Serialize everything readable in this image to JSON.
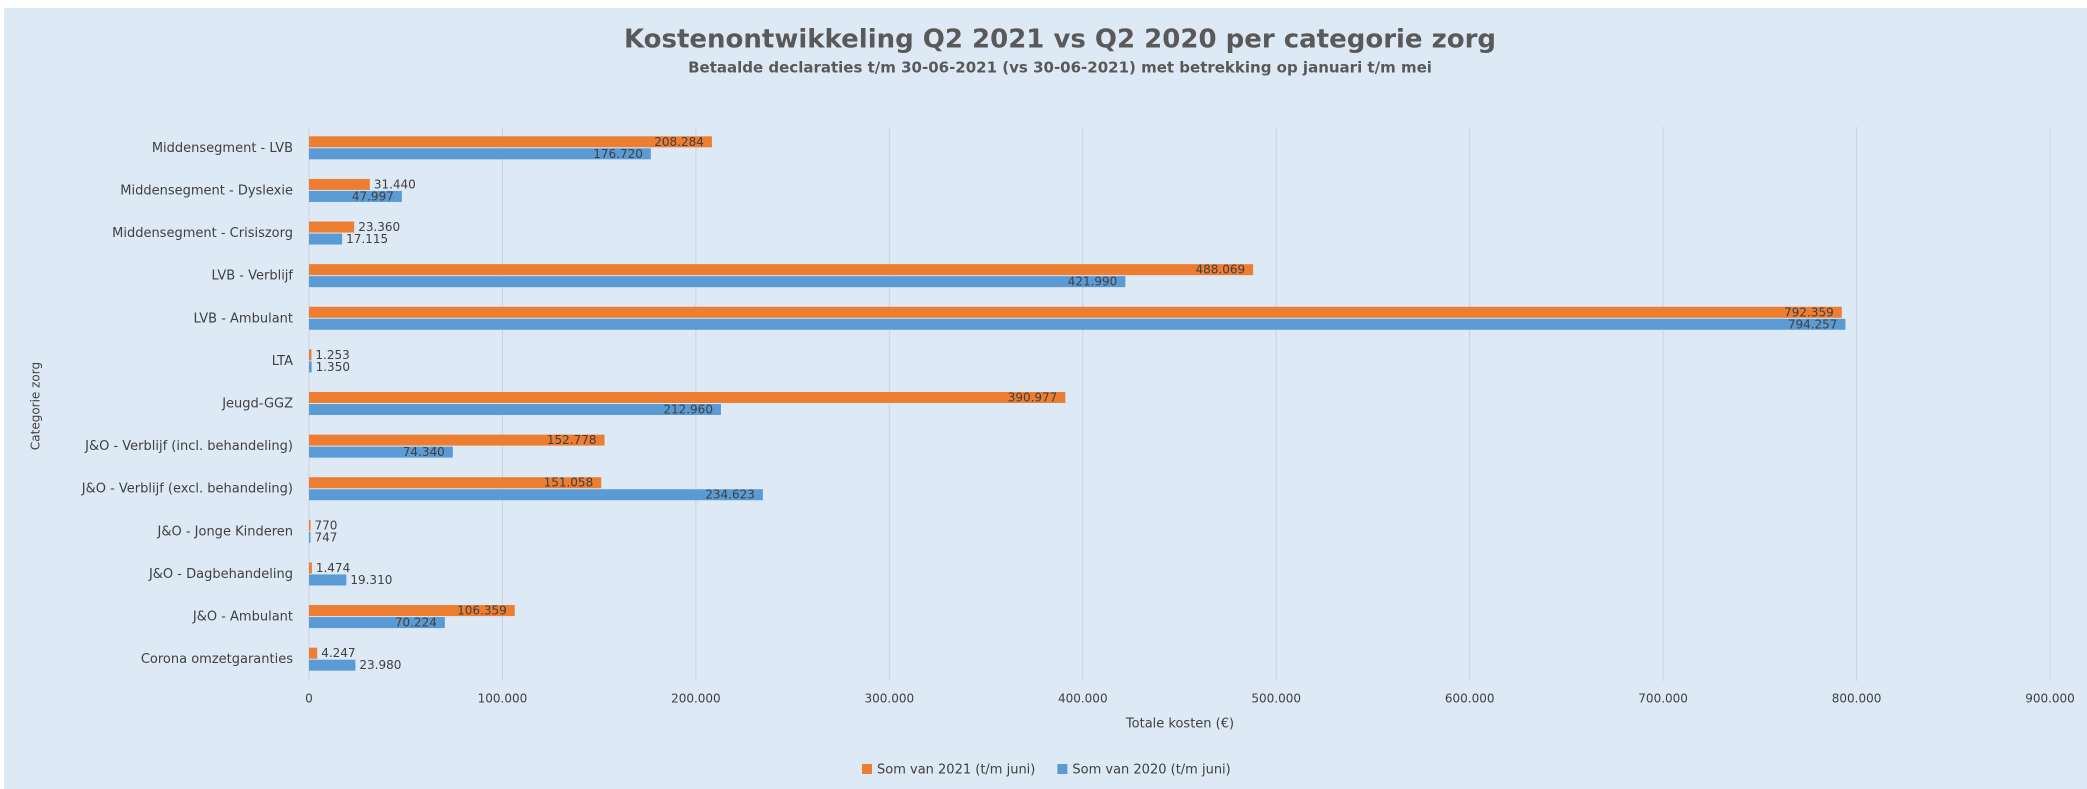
{
  "chart_data": {
    "type": "hbar",
    "title": "Kostenontwikkeling Q2 2021 vs Q2 2020 per categorie zorg",
    "subtitle": "Betaalde declaraties t/m 30-06-2021 (vs 30-06-2021) met betrekking op januari t/m  mei",
    "x_label": "Totale kosten (€)",
    "y_label": "Categorie zorg",
    "categories": [
      "Middensegment - LVB",
      "Middensegment - Dyslexie",
      "Middensegment - Crisiszorg",
      "LVB - Verblijf",
      "LVB - Ambulant",
      "LTA",
      "Jeugd-GGZ",
      "J&O - Verblijf (incl. behandeling)",
      "J&O - Verblijf (excl. behandeling)",
      "J&O - Jonge Kinderen",
      "J&O - Dagbehandeling",
      "J&O - Ambulant",
      "Corona omzetgaranties"
    ],
    "series": [
      {
        "name": "Som van 2021 (t/m juni)",
        "color": "#ed7d31",
        "values": [
          208284,
          31440,
          23360,
          488069,
          792359,
          1253,
          390977,
          152778,
          151058,
          770,
          1474,
          106359,
          4247
        ],
        "value_labels": [
          "208.284",
          "31.440",
          "23.360",
          "488.069",
          "792.359",
          "1.253",
          "390.977",
          "152.778",
          "151.058",
          "770",
          "1.474",
          "106.359",
          "4.247"
        ]
      },
      {
        "name": "Som van 2020 (t/m juni)",
        "color": "#5b9bd5",
        "values": [
          176720,
          47997,
          17115,
          421990,
          794257,
          1350,
          212960,
          74340,
          234623,
          747,
          19310,
          70224,
          23980
        ],
        "value_labels": [
          "176.720",
          "47.997",
          "17.115",
          "421.990",
          "794.257",
          "1.350",
          "212.960",
          "74.340",
          "234.623",
          "747",
          "19.310",
          "70.224",
          "23.980"
        ]
      }
    ],
    "xlim": [
      0,
      900000
    ],
    "xticks": [
      0,
      {
        "value": 100000,
        "label": "100.000"
      },
      {
        "value": 200000,
        "label": "200.000"
      },
      {
        "value": 300000,
        "label": "300.000"
      },
      {
        "value": 400000,
        "label": "400.000"
      },
      {
        "value": 500000,
        "label": "500.000"
      },
      {
        "value": 600000,
        "label": "600.000"
      },
      {
        "value": 700000,
        "label": "700.000"
      },
      {
        "value": 800000,
        "label": "800.000"
      },
      {
        "value": 900000,
        "label": "900.000"
      }
    ],
    "grid": true,
    "legend": "bottom"
  }
}
